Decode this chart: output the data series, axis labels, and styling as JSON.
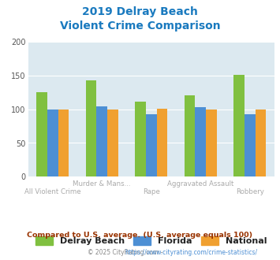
{
  "title_line1": "2019 Delray Beach",
  "title_line2": "Violent Crime Comparison",
  "title_color": "#1a7abf",
  "categories": [
    "All Violent Crime",
    "Murder & Mans...",
    "Rape",
    "Aggravated Assault",
    "Robbery"
  ],
  "series": {
    "Delray Beach": [
      125,
      143,
      111,
      120,
      151
    ],
    "Florida": [
      100,
      104,
      93,
      103,
      93
    ],
    "National": [
      100,
      100,
      101,
      100,
      100
    ]
  },
  "colors": {
    "Delray Beach": "#80c040",
    "Florida": "#4d8fd4",
    "National": "#f0a030"
  },
  "ylim": [
    0,
    200
  ],
  "yticks": [
    0,
    50,
    100,
    150,
    200
  ],
  "plot_bg": "#dce9f0",
  "legend_label_color": "#222222",
  "footnote1": "Compared to U.S. average. (U.S. average equals 100)",
  "footnote2_part1": "© 2025 CityRating.com - ",
  "footnote2_part2": "https://www.cityrating.com/crime-statistics/",
  "footnote1_color": "#993300",
  "footnote2_color1": "#888888",
  "footnote2_color2": "#4d8fd4",
  "bar_width": 0.22
}
